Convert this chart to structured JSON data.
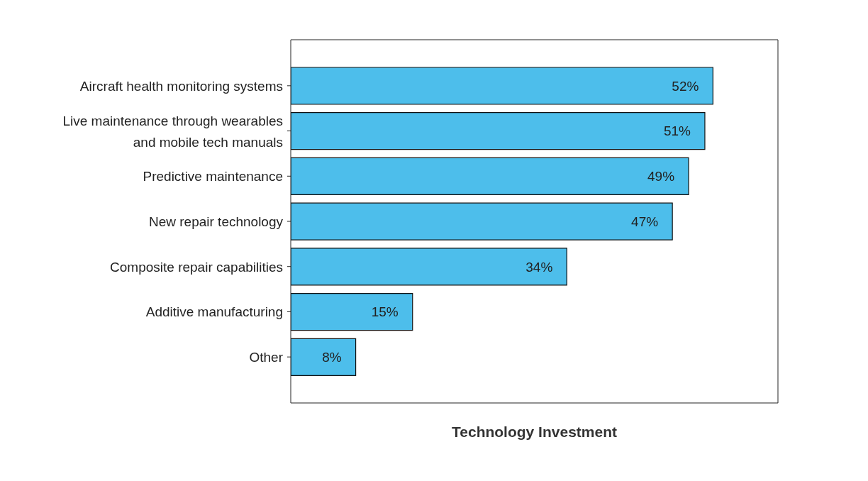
{
  "chart_data": {
    "type": "bar",
    "orientation": "horizontal",
    "xlabel": "Technology Investment",
    "categories": [
      "Aircraft health monitoring systems",
      "Live maintenance through wearables and mobile tech manuals",
      "Predictive maintenance",
      "New repair technology",
      "Composite repair capabilities",
      "Additive manufacturing",
      "Other"
    ],
    "values": [
      52,
      51,
      49,
      47,
      34,
      15,
      8
    ],
    "value_labels": [
      "52%",
      "51%",
      "49%",
      "47%",
      "34%",
      "15%",
      "8%"
    ],
    "color": "#4dbeeb",
    "xlim": [
      0,
      60
    ],
    "tick_labels": "y"
  }
}
